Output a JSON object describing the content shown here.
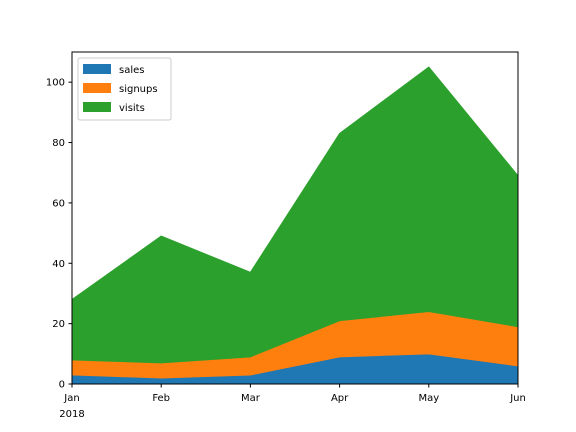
{
  "chart_data": {
    "type": "area",
    "stacked": true,
    "categories": [
      "Jan",
      "Feb",
      "Mar",
      "Apr",
      "May",
      "Jun"
    ],
    "year_label": "2018",
    "series": [
      {
        "name": "sales",
        "values": [
          3,
          2,
          3,
          9,
          10,
          6
        ],
        "color": "#1f77b4"
      },
      {
        "name": "signups",
        "values": [
          5,
          5,
          6,
          12,
          14,
          13
        ],
        "color": "#ff7f0e"
      },
      {
        "name": "visits",
        "values": [
          20,
          42,
          28,
          62,
          81,
          50
        ],
        "color": "#2ca02c"
      }
    ],
    "ylim": [
      0,
      110
    ],
    "yticks": [
      0,
      20,
      40,
      60,
      80,
      100
    ],
    "grid": false,
    "legend": "top-left",
    "title": "",
    "xlabel": "",
    "ylabel": ""
  }
}
